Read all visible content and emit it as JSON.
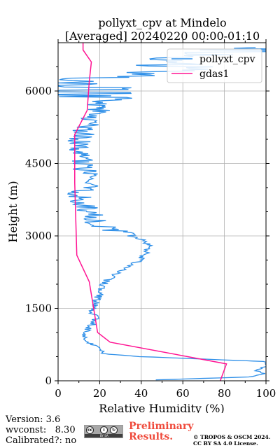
{
  "chart_data": {
    "type": "line",
    "title": "pollyxt_cpv at Mindelo",
    "subtitle": "[Averaged] 20240220 00:00-01:10",
    "xlabel": "Relative Humidity (%)",
    "ylabel": "Height (m)",
    "xlim": [
      0,
      100
    ],
    "ylim": [
      0,
      7000
    ],
    "xticks": [
      "0",
      "20",
      "40",
      "60",
      "80",
      "100"
    ],
    "yticks": [
      "0",
      "1500",
      "3000",
      "4500",
      "6000"
    ],
    "xtick_values": [
      0,
      20,
      40,
      60,
      80,
      100
    ],
    "ytick_values": [
      0,
      1500,
      3000,
      4500,
      6000
    ],
    "grid": true,
    "legend_position": "top-right",
    "series": [
      {
        "name": "pollyxt_cpv",
        "color": "#2e8fe8",
        "y": [
          20,
          80,
          150,
          220,
          300,
          400,
          450,
          500,
          560,
          620,
          700,
          800,
          900,
          1000,
          1100,
          1200,
          1300,
          1400,
          1500,
          1600,
          1700,
          1800,
          1900,
          2000,
          2100,
          2200,
          2300,
          2400,
          2500,
          2600,
          2700,
          2800,
          2900,
          3000,
          3100,
          3200,
          3300,
          3400,
          3500,
          3600,
          3700,
          3800,
          3900,
          4000,
          4100,
          4200,
          4300,
          4400,
          4500,
          4600,
          4700,
          4800,
          4900,
          5000,
          5100,
          5200,
          5300,
          5400,
          5500,
          5600,
          5700,
          5800,
          5900,
          6000,
          6100,
          6200,
          6300,
          6400,
          6500,
          6600,
          6700,
          6800,
          6900
        ],
        "x": [
          48,
          92,
          99,
          95,
          100,
          99,
          70,
          40,
          22,
          21,
          20,
          13,
          12,
          13,
          15,
          17,
          18,
          17,
          17,
          18,
          19,
          20,
          21,
          22,
          24,
          27,
          31,
          35,
          39,
          41,
          43,
          44,
          42,
          35,
          28,
          22,
          18,
          16,
          15,
          13,
          11,
          10,
          11,
          13,
          15,
          14,
          13,
          12,
          11,
          12,
          10,
          9,
          10,
          11,
          12,
          13,
          14,
          16,
          18,
          20,
          19,
          17,
          15,
          12,
          14,
          18,
          30,
          40,
          60,
          55,
          70,
          85,
          95
        ],
        "points_rendered_with_fine_jitter": true
      },
      {
        "name": "gdas1",
        "color": "#ff1493",
        "y": [
          0,
          350,
          800,
          1000,
          2050,
          2600,
          4100,
          5100,
          5600,
          6200,
          6600,
          6850,
          7000
        ],
        "x": [
          78,
          81,
          25,
          19,
          15,
          9,
          8,
          8,
          14,
          15,
          16,
          12,
          12
        ]
      }
    ]
  },
  "footer": {
    "version": "Version: 3.6",
    "wvconst_label": "wvconst:",
    "wvconst_value": "8.30",
    "calibrated": "Calibrated?: no",
    "preliminary_line1": "Preliminary",
    "preliminary_line2": "Results.",
    "copyright_line1": "© TROPOS & OSCM 2024.",
    "copyright_line2": "CC BY SA 4.0 License.",
    "badge_text": "BY SA"
  }
}
